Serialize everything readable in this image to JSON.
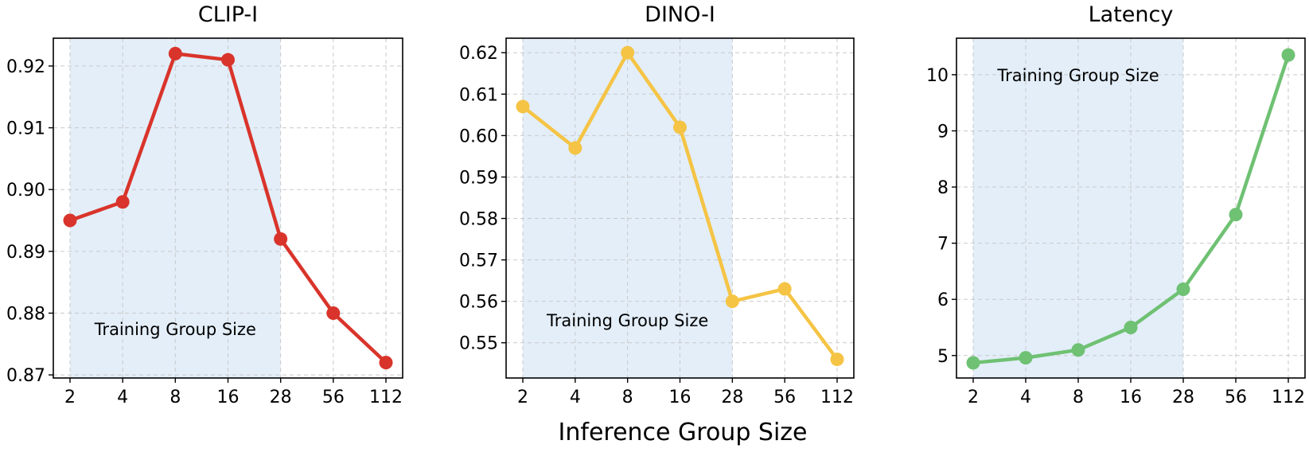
{
  "figure": {
    "xlabel": "Inference Group Size"
  },
  "chart_data": [
    {
      "type": "line",
      "title": "CLIP-I",
      "x": [
        "2",
        "4",
        "8",
        "16",
        "28",
        "56",
        "112"
      ],
      "series": [
        {
          "values": [
            0.895,
            0.898,
            0.922,
            0.921,
            0.892,
            0.88,
            0.872
          ],
          "color": "#d9342b"
        }
      ],
      "ylim": [
        0.8695,
        0.9245
      ],
      "yticks": [
        0.87,
        0.88,
        0.89,
        0.9,
        0.91,
        0.92
      ],
      "ytick_labels": [
        "0.87",
        "0.88",
        "0.89",
        "0.90",
        "0.91",
        "0.92"
      ],
      "grid": true,
      "shaded_range": {
        "from": "2",
        "to": "28",
        "color": "#e3eef9"
      },
      "annotation": {
        "text": "Training Group Size",
        "x_index": 2,
        "y": 0.8775
      }
    },
    {
      "type": "line",
      "title": "DINO-I",
      "x": [
        "2",
        "4",
        "8",
        "16",
        "28",
        "56",
        "112"
      ],
      "series": [
        {
          "values": [
            0.607,
            0.597,
            0.62,
            0.602,
            0.56,
            0.563,
            0.546
          ],
          "color": "#f5c445"
        }
      ],
      "ylim": [
        0.5415,
        0.6235
      ],
      "yticks": [
        0.55,
        0.56,
        0.57,
        0.58,
        0.59,
        0.6,
        0.61,
        0.62
      ],
      "ytick_labels": [
        "0.55",
        "0.56",
        "0.57",
        "0.58",
        "0.59",
        "0.60",
        "0.61",
        "0.62"
      ],
      "grid": true,
      "shaded_range": {
        "from": "2",
        "to": "28",
        "color": "#e3eef9"
      },
      "annotation": {
        "text": "Training Group Size",
        "x_index": 2,
        "y": 0.5555
      }
    },
    {
      "type": "line",
      "title": "Latency",
      "x": [
        "2",
        "4",
        "8",
        "16",
        "28",
        "56",
        "112"
      ],
      "series": [
        {
          "values": [
            4.87,
            4.96,
            5.1,
            5.5,
            6.18,
            7.51,
            10.35
          ],
          "color": "#6fc173"
        }
      ],
      "ylim": [
        4.6,
        10.65
      ],
      "yticks": [
        5,
        6,
        7,
        8,
        9,
        10
      ],
      "ytick_labels": [
        "5",
        "6",
        "7",
        "8",
        "9",
        "10"
      ],
      "grid": true,
      "shaded_range": {
        "from": "2",
        "to": "28",
        "color": "#e3eef9"
      },
      "annotation": {
        "text": "Training Group Size",
        "x_index": 2,
        "y": 10.0
      }
    }
  ]
}
